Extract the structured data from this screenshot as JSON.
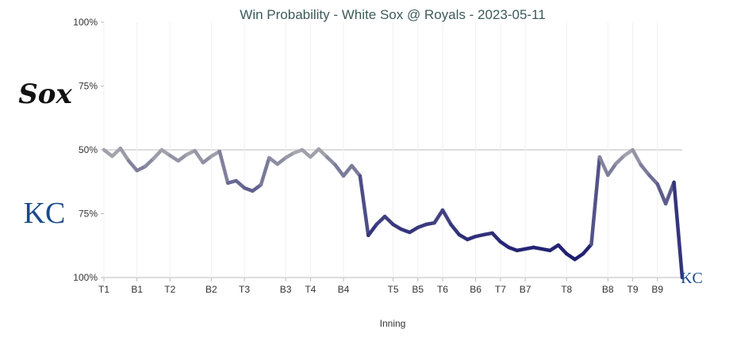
{
  "chart_data": {
    "type": "line",
    "title": "Win Probability - White Sox @ Royals - 2023-05-11",
    "xlabel": "Inning",
    "ylabel": "",
    "y_tick_labels": [
      "100%",
      "75%",
      "50%",
      "75%",
      "100%"
    ],
    "y_meaning": "Royals win probability (%); top = White Sox 100%, bottom = Royals 100%",
    "ylim": [
      0,
      100
    ],
    "teams": {
      "top": "White Sox",
      "bottom": "Royals"
    },
    "logos": {
      "top": "Sox",
      "bottom": "KC"
    },
    "x_ticks": [
      {
        "label": "T1",
        "play": 0
      },
      {
        "label": "B1",
        "play": 4
      },
      {
        "label": "T2",
        "play": 8
      },
      {
        "label": "B2",
        "play": 13
      },
      {
        "label": "T3",
        "play": 17
      },
      {
        "label": "B3",
        "play": 22
      },
      {
        "label": "T4",
        "play": 25
      },
      {
        "label": "B4",
        "play": 29
      },
      {
        "label": "T5",
        "play": 35
      },
      {
        "label": "B5",
        "play": 38
      },
      {
        "label": "T6",
        "play": 41
      },
      {
        "label": "B6",
        "play": 45
      },
      {
        "label": "T7",
        "play": 48
      },
      {
        "label": "B7",
        "play": 51
      },
      {
        "label": "T8",
        "play": 56
      },
      {
        "label": "B8",
        "play": 61
      },
      {
        "label": "T9",
        "play": 64
      },
      {
        "label": "B9",
        "play": 67
      }
    ],
    "royals_wp": [
      50,
      52.5,
      49.4,
      54.3,
      58.1,
      56.5,
      53.4,
      50,
      52.2,
      54.3,
      51.9,
      50.3,
      55,
      52.5,
      50.6,
      63,
      62.1,
      64.9,
      66.1,
      63.7,
      53.1,
      55.6,
      53.1,
      51.2,
      50,
      52.8,
      49.7,
      52.8,
      55.9,
      60.2,
      56.2,
      60.2,
      83.5,
      79.2,
      76.1,
      79.2,
      81.1,
      82.3,
      80.4,
      79.2,
      78.6,
      73.6,
      79.2,
      83.2,
      85.1,
      83.9,
      83.2,
      82.6,
      86,
      88.2,
      89.4,
      88.8,
      88.2,
      88.8,
      89.4,
      87.3,
      90.7,
      92.9,
      90.7,
      87,
      52.8,
      59.9,
      55.3,
      52.2,
      50,
      55.9,
      59.9,
      63.4,
      71.1,
      62.7,
      100
    ],
    "colors": {
      "neutral": "#b3b3b3",
      "royals": "#0c0c6a",
      "sox_logo": "#111111",
      "kc_logo": "#1a4a8a",
      "title": "#3d5a5a"
    }
  }
}
